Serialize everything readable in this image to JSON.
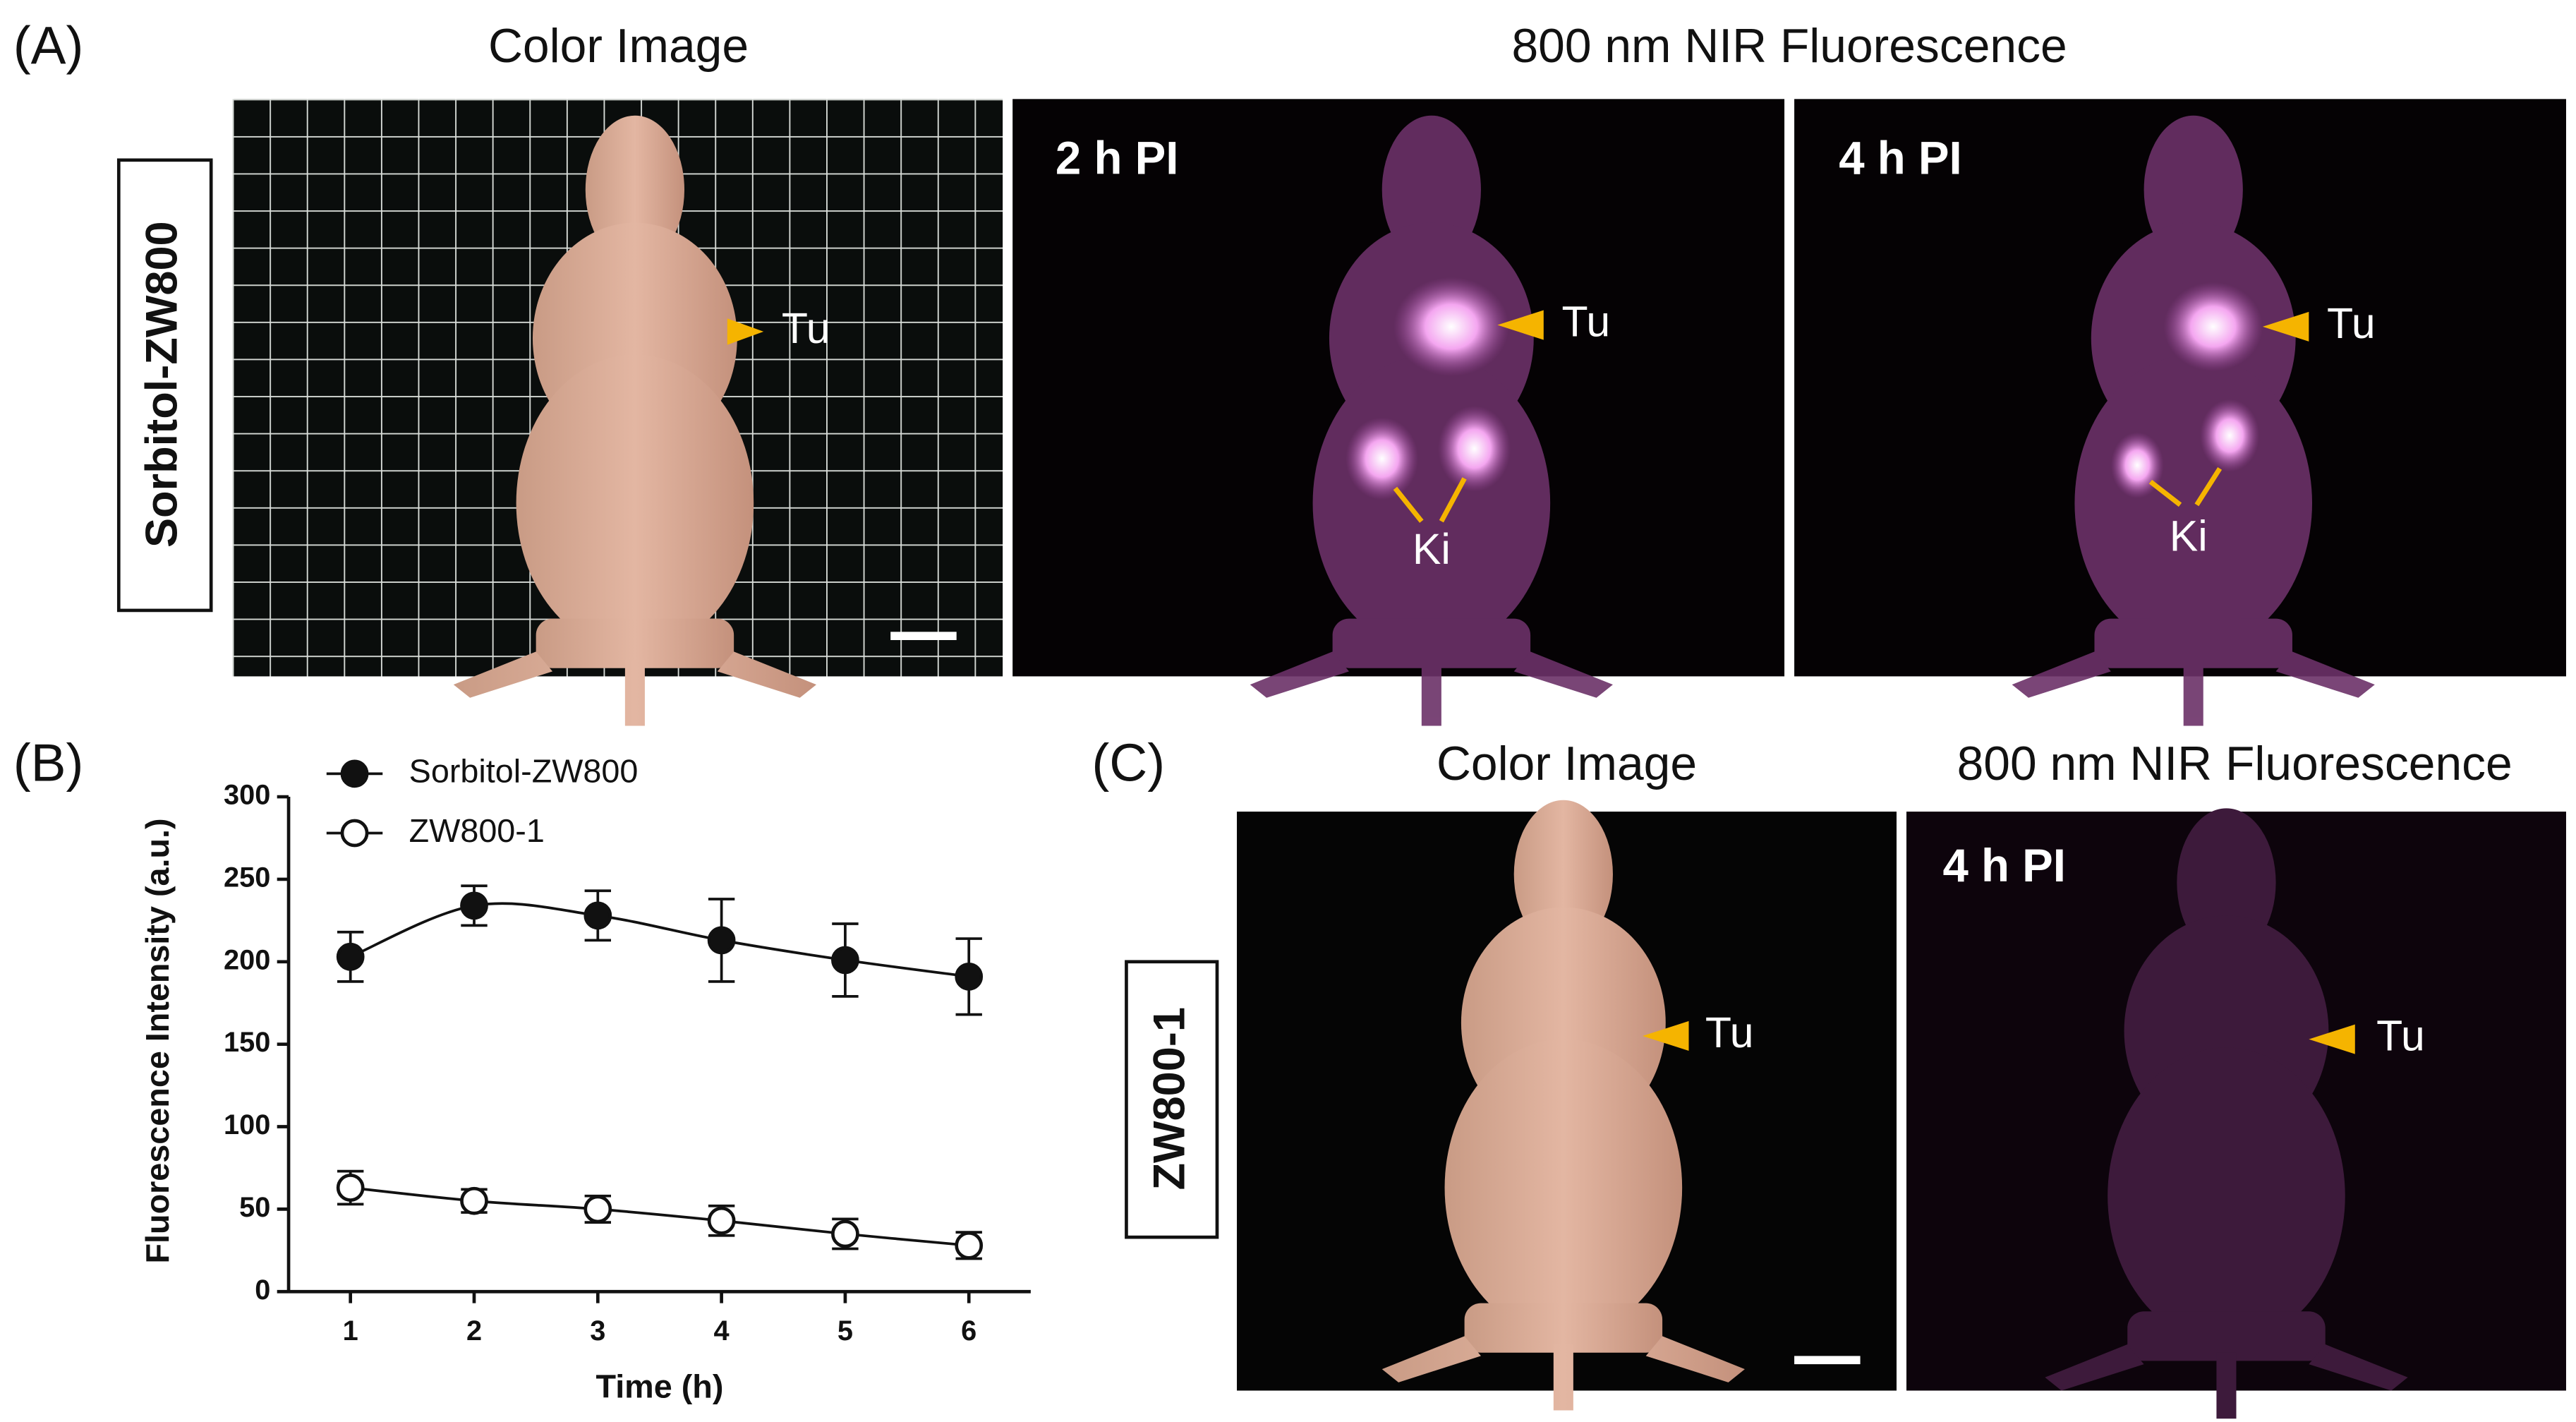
{
  "panel_a": {
    "label": "(A)",
    "color_title": "Color Image",
    "nir_title": "800 nm NIR Fluorescence",
    "row_label": "Sorbitol-ZW800",
    "color_image": {
      "tumor": "Tu"
    },
    "nir_images": [
      {
        "time": "2 h PI",
        "tumor": "Tu",
        "kidney": "Ki"
      },
      {
        "time": "4 h PI",
        "tumor": "Tu",
        "kidney": "Ki"
      }
    ]
  },
  "panel_b": {
    "label": "(B)"
  },
  "chart_data": {
    "type": "line",
    "xlabel": "Time (h)",
    "ylabel": "Fluorescence Intensity (a.u.)",
    "x": [
      1,
      2,
      3,
      4,
      5,
      6
    ],
    "series": [
      {
        "name": "Sorbitol-ZW800",
        "color": "#111111",
        "marker": "filled-circle",
        "values": [
          203,
          234,
          228,
          213,
          201,
          191
        ],
        "errors": [
          15,
          12,
          15,
          25,
          22,
          23
        ]
      },
      {
        "name": "ZW800-1",
        "color": "#111111",
        "marker": "open-circle",
        "values": [
          63,
          55,
          50,
          43,
          35,
          28
        ],
        "errors": [
          10,
          7,
          8,
          9,
          9,
          8
        ]
      }
    ],
    "xlim": [
      0.5,
      6.5
    ],
    "xticks": [
      1,
      2,
      3,
      4,
      5,
      6
    ],
    "ylim": [
      0,
      300
    ],
    "yticks": [
      0,
      50,
      100,
      150,
      200,
      250,
      300
    ],
    "grid": false,
    "legend": "top-left"
  },
  "panel_c": {
    "label": "(C)",
    "color_title": "Color Image",
    "nir_title": "800 nm NIR Fluorescence",
    "row_label": "ZW800-1",
    "color_image": {
      "tumor": "Tu"
    },
    "nir_image": {
      "time": "4 h PI",
      "tumor": "Tu"
    }
  }
}
